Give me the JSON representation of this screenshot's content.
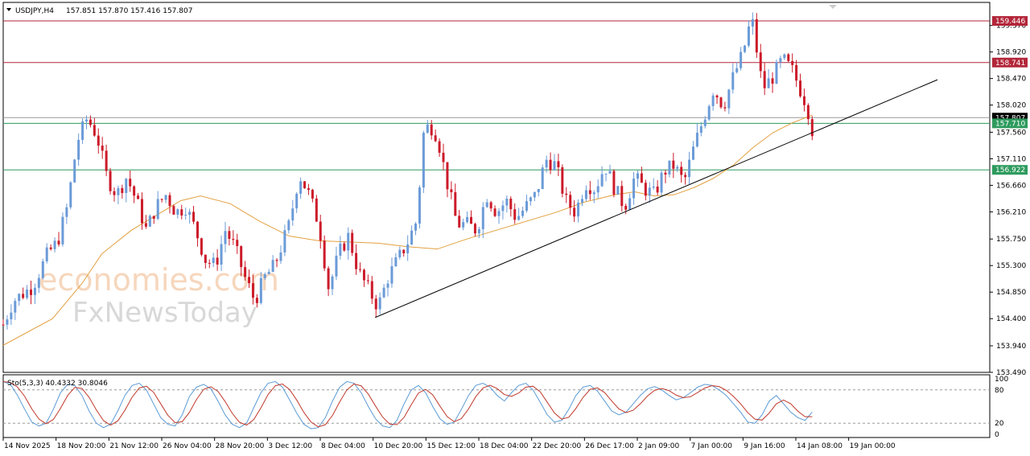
{
  "header": {
    "symbol": "USDJPY,H4",
    "ohlc": "157.851 157.870 157.416 157.807"
  },
  "stoch_header": "Sto(5,3,3) 40.4332 30.8046",
  "watermark": {
    "line1": "economies.com",
    "line2": "FxNewsToday"
  },
  "colors": {
    "bull": "#6b9bd8",
    "bear": "#cc1b2a",
    "ma": "#e3a040",
    "k_line": "#5b9bd5",
    "d_line": "#c0392b",
    "resistance": "#b3263a",
    "support": "#2e9b5e",
    "trend": "#000000"
  },
  "chart_data": {
    "type": "candlestick",
    "ylim": [
      153.49,
      159.76
    ],
    "y_ticks": [
      "159.370",
      "158.920",
      "158.470",
      "158.020",
      "157.560",
      "157.110",
      "156.660",
      "156.210",
      "155.750",
      "155.300",
      "154.850",
      "154.400",
      "153.940",
      "153.490"
    ],
    "x_labels": [
      "14 Nov 2025",
      "18 Nov 20:00",
      "21 Nov 12:00",
      "26 Nov 04:00",
      "28 Nov 20:00",
      "3 Dec 12:00",
      "8 Dec 04:00",
      "10 Dec 20:00",
      "15 Dec 12:00",
      "18 Dec 04:00",
      "22 Dec 20:00",
      "26 Dec 17:00",
      "2 Jan 09:00",
      "7 Jan 00:00",
      "9 Jan 16:00",
      "14 Jan 08:00",
      "19 Jan 00:00"
    ],
    "price_levels": [
      {
        "label": "159.446",
        "value": 159.446,
        "kind": "resistance"
      },
      {
        "label": "158.741",
        "value": 158.741,
        "kind": "resistance"
      },
      {
        "label": "157.807",
        "value": 157.807,
        "kind": "current"
      },
      {
        "label": "157.710",
        "value": 157.71,
        "kind": "support"
      },
      {
        "label": "156.922",
        "value": 156.922,
        "kind": "support"
      }
    ],
    "trendline": {
      "from": [
        0.377,
        154.42
      ],
      "to": [
        0.947,
        158.45
      ]
    },
    "waypoints": [
      [
        0,
        154.3
      ],
      [
        0.01,
        154.7
      ],
      [
        0.03,
        154.95
      ],
      [
        0.045,
        155.5
      ],
      [
        0.055,
        155.7
      ],
      [
        0.065,
        156.3
      ],
      [
        0.075,
        157.4
      ],
      [
        0.085,
        157.8
      ],
      [
        0.095,
        157.5
      ],
      [
        0.105,
        156.8
      ],
      [
        0.115,
        156.5
      ],
      [
        0.125,
        156.8
      ],
      [
        0.135,
        156.4
      ],
      [
        0.145,
        155.9
      ],
      [
        0.155,
        156.3
      ],
      [
        0.165,
        156.5
      ],
      [
        0.175,
        156.2
      ],
      [
        0.185,
        156.3
      ],
      [
        0.195,
        155.9
      ],
      [
        0.205,
        155.4
      ],
      [
        0.215,
        155.3
      ],
      [
        0.225,
        155.9
      ],
      [
        0.235,
        155.6
      ],
      [
        0.245,
        155.1
      ],
      [
        0.255,
        154.7
      ],
      [
        0.265,
        155.1
      ],
      [
        0.275,
        155.3
      ],
      [
        0.29,
        156.0
      ],
      [
        0.3,
        156.85
      ],
      [
        0.31,
        156.5
      ],
      [
        0.32,
        156.0
      ],
      [
        0.33,
        154.9
      ],
      [
        0.34,
        155.5
      ],
      [
        0.35,
        155.8
      ],
      [
        0.36,
        155.2
      ],
      [
        0.37,
        154.9
      ],
      [
        0.38,
        154.6
      ],
      [
        0.39,
        155.1
      ],
      [
        0.4,
        155.4
      ],
      [
        0.41,
        155.7
      ],
      [
        0.42,
        156.1
      ],
      [
        0.425,
        157.5
      ],
      [
        0.432,
        157.7
      ],
      [
        0.44,
        157.5
      ],
      [
        0.45,
        156.7
      ],
      [
        0.46,
        156.0
      ],
      [
        0.47,
        156.0
      ],
      [
        0.48,
        155.9
      ],
      [
        0.49,
        156.5
      ],
      [
        0.5,
        156.2
      ],
      [
        0.51,
        156.4
      ],
      [
        0.52,
        156.1
      ],
      [
        0.53,
        156.3
      ],
      [
        0.54,
        156.5
      ],
      [
        0.55,
        157.1
      ],
      [
        0.56,
        157.0
      ],
      [
        0.57,
        156.4
      ],
      [
        0.58,
        156.2
      ],
      [
        0.59,
        156.7
      ],
      [
        0.6,
        156.6
      ],
      [
        0.61,
        157.0
      ],
      [
        0.62,
        156.6
      ],
      [
        0.63,
        156.3
      ],
      [
        0.64,
        156.8
      ],
      [
        0.65,
        156.6
      ],
      [
        0.66,
        156.5
      ],
      [
        0.67,
        156.9
      ],
      [
        0.68,
        157.0
      ],
      [
        0.69,
        156.7
      ],
      [
        0.7,
        157.3
      ],
      [
        0.71,
        157.8
      ],
      [
        0.72,
        158.3
      ],
      [
        0.73,
        158.0
      ],
      [
        0.74,
        158.5
      ],
      [
        0.75,
        158.9
      ],
      [
        0.755,
        159.3
      ],
      [
        0.76,
        159.4
      ],
      [
        0.765,
        158.8
      ],
      [
        0.77,
        158.3
      ],
      [
        0.78,
        158.5
      ],
      [
        0.79,
        158.8
      ],
      [
        0.8,
        158.6
      ],
      [
        0.81,
        158.2
      ],
      [
        0.815,
        158.0
      ],
      [
        0.82,
        157.6
      ]
    ],
    "ma_points": [
      [
        0,
        153.95
      ],
      [
        0.05,
        154.4
      ],
      [
        0.08,
        155.0
      ],
      [
        0.1,
        155.5
      ],
      [
        0.13,
        155.9
      ],
      [
        0.16,
        156.2
      ],
      [
        0.18,
        156.4
      ],
      [
        0.2,
        156.48
      ],
      [
        0.23,
        156.35
      ],
      [
        0.26,
        156.05
      ],
      [
        0.29,
        155.8
      ],
      [
        0.32,
        155.72
      ],
      [
        0.35,
        155.7
      ],
      [
        0.38,
        155.68
      ],
      [
        0.41,
        155.62
      ],
      [
        0.44,
        155.58
      ],
      [
        0.47,
        155.75
      ],
      [
        0.5,
        155.9
      ],
      [
        0.53,
        156.05
      ],
      [
        0.56,
        156.2
      ],
      [
        0.59,
        156.38
      ],
      [
        0.62,
        156.5
      ],
      [
        0.64,
        156.55
      ],
      [
        0.66,
        156.48
      ],
      [
        0.68,
        156.5
      ],
      [
        0.7,
        156.62
      ],
      [
        0.72,
        156.78
      ],
      [
        0.74,
        157.0
      ],
      [
        0.76,
        157.3
      ],
      [
        0.78,
        157.55
      ],
      [
        0.8,
        157.72
      ],
      [
        0.82,
        157.85
      ]
    ],
    "stochastic": {
      "levels": [
        20,
        80
      ],
      "y_ticks": [
        "100",
        "80",
        "20",
        "0"
      ],
      "k": [
        95,
        90,
        70,
        45,
        22,
        15,
        20,
        45,
        75,
        90,
        88,
        70,
        42,
        20,
        12,
        18,
        42,
        70,
        88,
        92,
        80,
        55,
        30,
        18,
        15,
        35,
        68,
        85,
        90,
        82,
        60,
        35,
        18,
        12,
        20,
        48,
        75,
        92,
        95,
        85,
        62,
        38,
        18,
        10,
        12,
        30,
        60,
        85,
        95,
        92,
        75,
        50,
        28,
        15,
        12,
        25,
        55,
        80,
        88,
        75,
        50,
        28,
        18,
        22,
        45,
        70,
        88,
        92,
        85,
        70,
        60,
        75,
        88,
        92,
        80,
        58,
        35,
        22,
        25,
        45,
        70,
        85,
        88,
        78,
        60,
        42,
        35,
        40,
        55,
        70,
        82,
        86,
        80,
        70,
        62,
        66,
        75,
        85,
        90,
        88,
        80,
        70,
        55,
        40,
        22,
        20,
        35,
        60,
        70,
        55,
        40,
        30,
        25,
        40
      ]
    }
  }
}
